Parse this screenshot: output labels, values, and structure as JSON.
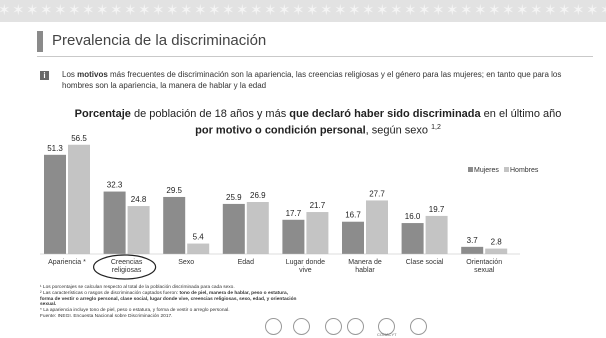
{
  "page": {
    "title": "Prevalencia de la discriminación",
    "intro": {
      "part1": "Los ",
      "bold1": "motivos",
      "part2": " más frecuentes de discriminación son la apariencia, las creencias religiosas y el género para las mujeres; en tanto que para los hombres son la apariencia, la manera de hablar y la edad",
      "info_icon": "i"
    },
    "chart_title": {
      "b1": "Porcentaje",
      "t1": " de población de 18 años y más ",
      "b2": "que declaró haber sido discriminada",
      "t2": " en el último año",
      "b3": "por motivo o condición personal",
      "t3": ", según sexo ",
      "sup": "1,2"
    },
    "footnotes": {
      "n1": "¹ Los porcentajes se calculan respecto al total de la población discriminada para cada sexo.",
      "n2a": "² Las características o rasgos de discriminación captados fueron: ",
      "n2b": "tono de piel, manera de hablar, peso o estatura, forma de vestir o arreglo personal, clase social, lugar donde vive, creencias religiosas, sexo, edad, y orientación sexual.",
      "n3": "* La apariencia incluye tono de piel, peso o estatura, y forma de vestir o arreglo personal.",
      "n4": "Fuente: INEGI. Encuesta Nacional sobre Discriminación 2017."
    },
    "logos": {
      "conacyt": "CONACYT"
    },
    "colors": {
      "mujeres": "#8c8c8c",
      "hombres": "#c4c4c4",
      "circle": "#222222"
    }
  },
  "chart_data": {
    "type": "bar",
    "categories": [
      "Apariencia *",
      "Creencias religiosas",
      "Sexo",
      "Edad",
      "Lugar donde vive",
      "Manera de hablar",
      "Clase social",
      "Orientación sexual"
    ],
    "series": [
      {
        "name": "Mujeres",
        "values": [
          51.3,
          32.3,
          29.5,
          25.9,
          17.7,
          16.7,
          16.0,
          3.7
        ]
      },
      {
        "name": "Hombres",
        "values": [
          56.5,
          24.8,
          5.4,
          26.9,
          21.7,
          27.7,
          19.7,
          2.8
        ]
      }
    ],
    "value_labels": {
      "Mujeres": [
        "51.3",
        "32.3",
        "29.5",
        "25.9",
        "17.7",
        "16.7",
        "16.0",
        "3.7"
      ],
      "Hombres": [
        "56.5",
        "24.8",
        "5.4",
        "26.9",
        "21.7",
        "27.7",
        "19.7",
        "2.8"
      ]
    },
    "ylim": [
      0,
      60
    ],
    "grid": false,
    "legend": "right",
    "highlighted_category": "Creencias religiosas"
  }
}
